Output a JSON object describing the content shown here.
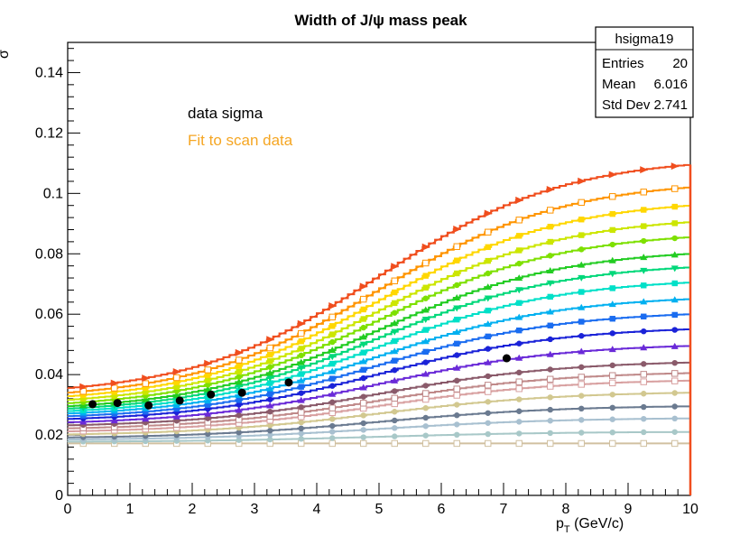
{
  "chart_data": {
    "type": "line",
    "title": "Width of J/ψ mass peak",
    "xlabel": "p_T (GeV/c)",
    "xlabel_main": "p",
    "xlabel_sub": "T",
    "xlabel_unit": " (GeV/c)",
    "ylabel": "σ",
    "xlim": [
      0,
      10
    ],
    "ylim": [
      0,
      0.15
    ],
    "x_ticks": [
      "0",
      "1",
      "2",
      "3",
      "4",
      "5",
      "6",
      "7",
      "8",
      "9",
      "10"
    ],
    "y_ticks": [
      "0",
      "0.02",
      "0.04",
      "0.06",
      "0.08",
      "0.1",
      "0.12",
      "0.14"
    ],
    "grid": false,
    "legend": [
      {
        "label": "data sigma",
        "color": "#000000"
      },
      {
        "label": "Fit to scan data",
        "color": "#f5a623"
      }
    ],
    "stats_box": {
      "name": "hsigma19",
      "rows": [
        {
          "label": "Entries",
          "value": "20"
        },
        {
          "label": "Mean",
          "value": "6.016"
        },
        {
          "label": "Std Dev",
          "value": "2.741"
        }
      ]
    },
    "data_series": {
      "name": "data sigma",
      "x": [
        0.4,
        0.8,
        1.3,
        1.8,
        2.3,
        2.8,
        3.55,
        7.05
      ],
      "y": [
        0.0302,
        0.0306,
        0.0298,
        0.0314,
        0.0334,
        0.034,
        0.0374,
        0.0454
      ]
    },
    "scan_curves": [
      {
        "y0": 0.0355,
        "y10": 0.1095,
        "color": "#f04e1e",
        "marker": "triangle-right"
      },
      {
        "y0": 0.034,
        "y10": 0.102,
        "color": "#ff9500",
        "marker": "open-square"
      },
      {
        "y0": 0.0328,
        "y10": 0.096,
        "color": "#ffd700",
        "marker": "square"
      },
      {
        "y0": 0.0316,
        "y10": 0.0905,
        "color": "#cce600",
        "marker": "square"
      },
      {
        "y0": 0.0305,
        "y10": 0.0855,
        "color": "#7ee000",
        "marker": "circle"
      },
      {
        "y0": 0.0295,
        "y10": 0.08,
        "color": "#22cc22",
        "marker": "triangle"
      },
      {
        "y0": 0.0287,
        "y10": 0.0755,
        "color": "#00d87a",
        "marker": "triangle-down"
      },
      {
        "y0": 0.0279,
        "y10": 0.0705,
        "color": "#00e0c8",
        "marker": "square"
      },
      {
        "y0": 0.0271,
        "y10": 0.065,
        "color": "#00b0f0",
        "marker": "triangle"
      },
      {
        "y0": 0.0262,
        "y10": 0.06,
        "color": "#1a6cf0",
        "marker": "square"
      },
      {
        "y0": 0.0253,
        "y10": 0.055,
        "color": "#1a22d8",
        "marker": "circle"
      },
      {
        "y0": 0.0242,
        "y10": 0.0495,
        "color": "#6a2ad8",
        "marker": "triangle"
      },
      {
        "y0": 0.0232,
        "y10": 0.044,
        "color": "#8a5a6a",
        "marker": "circle"
      },
      {
        "y0": 0.0222,
        "y10": 0.0405,
        "color": "#c08a8a",
        "marker": "open-square"
      },
      {
        "y0": 0.0212,
        "y10": 0.038,
        "color": "#d8a0a0",
        "marker": "open-square"
      },
      {
        "y0": 0.0202,
        "y10": 0.034,
        "color": "#d2c890",
        "marker": "circle"
      },
      {
        "y0": 0.0192,
        "y10": 0.0295,
        "color": "#6a7a90",
        "marker": "circle"
      },
      {
        "y0": 0.0185,
        "y10": 0.0255,
        "color": "#a8c0d0",
        "marker": "circle"
      },
      {
        "y0": 0.0178,
        "y10": 0.021,
        "color": "#a8c8c8",
        "marker": "circle"
      },
      {
        "y0": 0.0172,
        "y10": 0.0172,
        "color": "#d0c0a0",
        "marker": "open-square"
      }
    ]
  }
}
